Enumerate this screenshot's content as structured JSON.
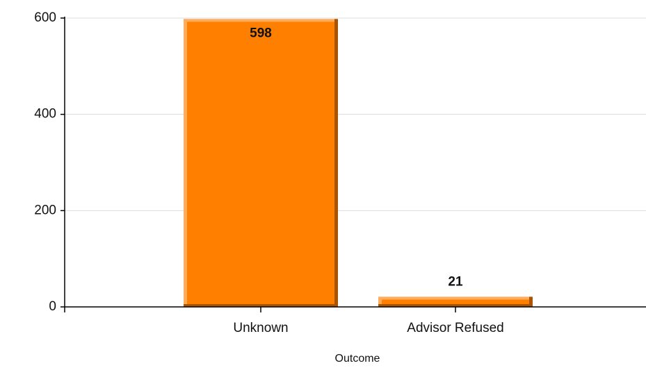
{
  "chart_data": {
    "type": "bar",
    "x_label": "Outcome",
    "categories": [
      "Unknown",
      "Advisor Refused"
    ],
    "values": [
      598,
      21
    ],
    "color": "#ff8000",
    "ylim": [
      0,
      600
    ],
    "yticks": [
      0,
      200,
      400,
      600
    ],
    "grid": true
  }
}
